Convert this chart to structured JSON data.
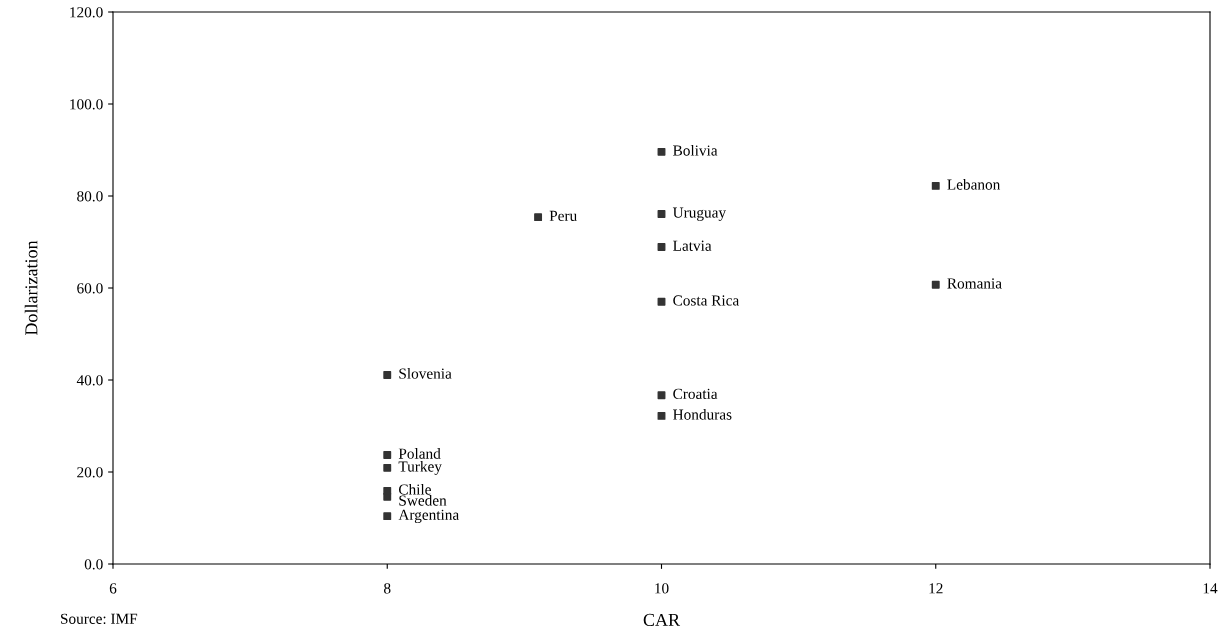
{
  "chart_data": {
    "type": "scatter",
    "xlabel": "CAR",
    "ylabel": "Dollarization",
    "x": [
      10,
      12,
      10,
      9.1,
      10,
      12,
      10,
      8,
      10,
      10,
      8,
      8,
      8,
      8,
      8
    ],
    "series": [
      {
        "color": "#333333",
        "values": [
          89.6,
          82.2,
          76.1,
          75.4,
          68.9,
          60.7,
          57.0,
          41.1,
          36.7,
          32.2,
          23.7,
          20.9,
          15.9,
          14.6,
          10.4
        ]
      }
    ],
    "annotations": [
      {
        "text": "Bolivia",
        "x": 10,
        "y": 89.6
      },
      {
        "text": "Lebanon",
        "x": 12,
        "y": 82.2
      },
      {
        "text": "Uruguay",
        "x": 10,
        "y": 76.1
      },
      {
        "text": "Peru",
        "x": 9.1,
        "y": 75.4
      },
      {
        "text": "Latvia",
        "x": 10,
        "y": 68.9
      },
      {
        "text": "Romania",
        "x": 12,
        "y": 60.7
      },
      {
        "text": "Costa Rica",
        "x": 10,
        "y": 57.0
      },
      {
        "text": "Slovenia",
        "x": 8,
        "y": 41.1
      },
      {
        "text": "Croatia",
        "x": 10,
        "y": 36.7
      },
      {
        "text": "Honduras",
        "x": 10,
        "y": 32.2
      },
      {
        "text": "Poland",
        "x": 8,
        "y": 23.7
      },
      {
        "text": "Turkey",
        "x": 8,
        "y": 20.9
      },
      {
        "text": "Chile",
        "x": 8,
        "y": 15.9
      },
      {
        "text": "Sweden",
        "x": 8,
        "y": 14.6
      },
      {
        "text": "Argentina",
        "x": 8,
        "y": 10.4
      },
      "Source: IMF"
    ],
    "xlim": [
      6,
      14
    ],
    "xticks": [
      6,
      8,
      10,
      12,
      14
    ],
    "ylim": [
      0,
      120
    ],
    "yticks": [
      {
        "value": 0,
        "label": "0.0"
      },
      {
        "value": 20,
        "label": "20.0"
      },
      {
        "value": 40,
        "label": "40.0"
      },
      {
        "value": 60,
        "label": "60.0"
      },
      {
        "value": 80,
        "label": "80.0"
      },
      {
        "value": 100,
        "label": "100.0"
      },
      {
        "value": 120,
        "label": "120.0"
      }
    ],
    "marker": "square",
    "grid": false,
    "legend": false
  }
}
